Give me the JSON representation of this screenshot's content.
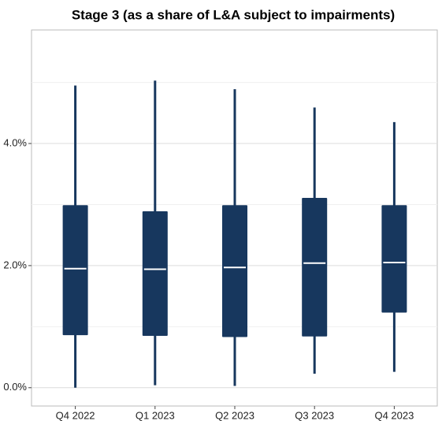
{
  "chart_data": {
    "type": "box",
    "title": "Stage 3 (as a share of L&A subject to impairments)",
    "categories": [
      "Q4 2022",
      "Q1 2023",
      "Q2 2023",
      "Q3 2023",
      "Q4 2023"
    ],
    "series": [
      {
        "color": "#17375e",
        "min": [
          0.0,
          0.04,
          0.03,
          0.23,
          0.26
        ],
        "q1": [
          0.86,
          0.85,
          0.83,
          0.84,
          1.23
        ],
        "median": [
          1.95,
          1.94,
          1.97,
          2.04,
          2.05
        ],
        "q3": [
          2.99,
          2.89,
          2.99,
          3.11,
          2.99
        ],
        "max": [
          4.95,
          5.03,
          4.89,
          4.59,
          4.35
        ]
      }
    ],
    "ylim": [
      -0.3,
      5.86
    ],
    "yticks": [
      {
        "value": 0,
        "label": "0.0%"
      },
      {
        "value": 2,
        "label": "2.0%"
      },
      {
        "value": 4,
        "label": "4.0%"
      }
    ],
    "minor_yticks": [
      1,
      3,
      5
    ],
    "grid": true
  }
}
